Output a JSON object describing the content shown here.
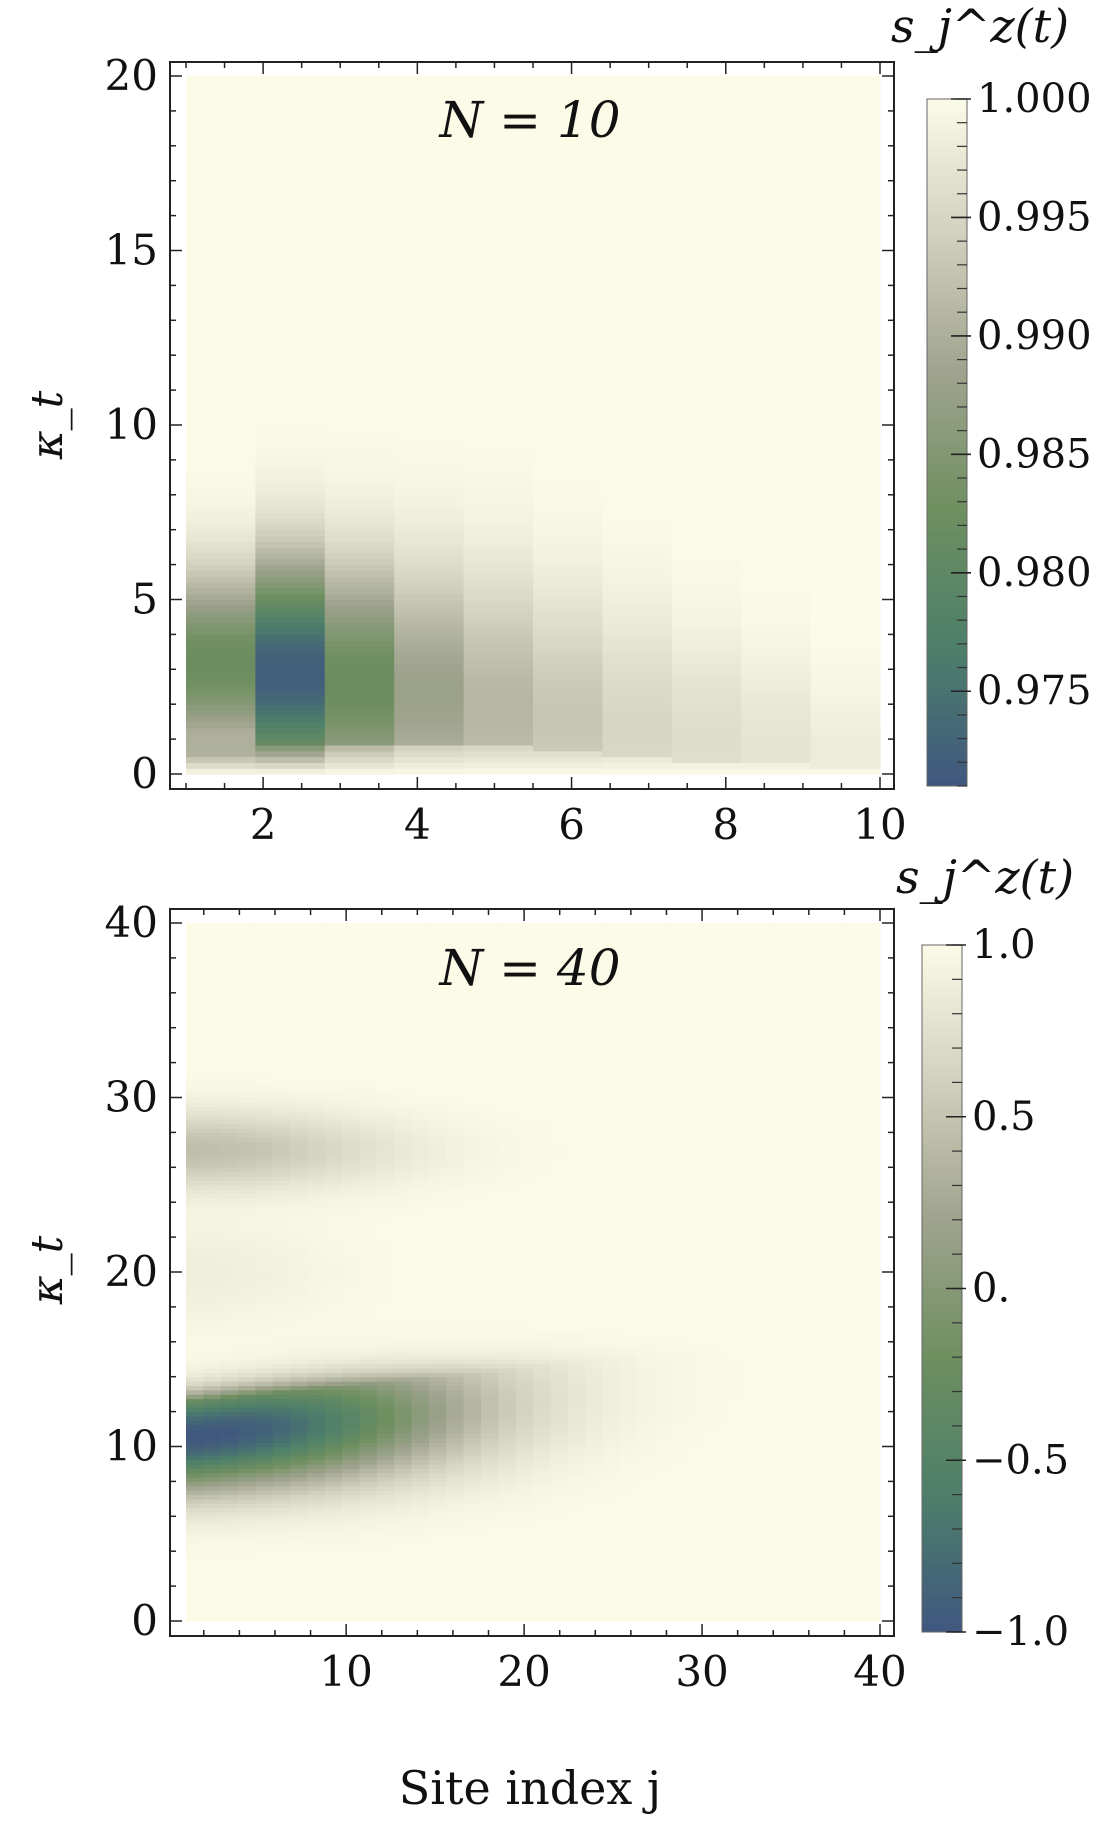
{
  "figure": {
    "xlabel": "Site index j"
  },
  "chart_data": [
    {
      "type": "heatmap",
      "title": "N = 10",
      "xlabel": "",
      "ylabel": "κ_t",
      "xlim": [
        1,
        10
      ],
      "ylim": [
        0,
        20
      ],
      "x_ticks": [
        "2",
        "4",
        "6",
        "8",
        "10"
      ],
      "x_tick_values": [
        2,
        4,
        6,
        8,
        10
      ],
      "y_ticks": [
        "0",
        "5",
        "10",
        "15",
        "20"
      ],
      "y_tick_values": [
        0,
        5,
        10,
        15,
        20
      ],
      "colorbar": {
        "title": "s_j^z(t)",
        "range": [
          0.971,
          1.0
        ],
        "ticks": [
          "1.000",
          "0.995",
          "0.990",
          "0.985",
          "0.980",
          "0.975"
        ],
        "tick_values": [
          1.0,
          0.995,
          0.99,
          0.985,
          0.98,
          0.975
        ]
      },
      "sites": [
        1,
        2,
        3,
        4,
        5,
        6,
        7,
        8,
        9,
        10
      ],
      "site_profiles": [
        {
          "site": 1,
          "min_value": 0.982,
          "t_min": 3.2,
          "t_onset": 0.6,
          "width": 2.6
        },
        {
          "site": 2,
          "min_value": 0.972,
          "t_min": 2.9,
          "t_onset": 0.8,
          "width": 3.2
        },
        {
          "site": 3,
          "min_value": 0.982,
          "t_min": 2.6,
          "t_onset": 0.9,
          "width": 3.4
        },
        {
          "site": 4,
          "min_value": 0.988,
          "t_min": 2.3,
          "t_onset": 0.9,
          "width": 3.6
        },
        {
          "site": 5,
          "min_value": 0.991,
          "t_min": 1.9,
          "t_onset": 0.8,
          "width": 3.8
        },
        {
          "site": 6,
          "min_value": 0.993,
          "t_min": 1.6,
          "t_onset": 0.6,
          "width": 3.6
        },
        {
          "site": 7,
          "min_value": 0.995,
          "t_min": 1.3,
          "t_onset": 0.5,
          "width": 3.4
        },
        {
          "site": 8,
          "min_value": 0.996,
          "t_min": 1.0,
          "t_onset": 0.4,
          "width": 3.0
        },
        {
          "site": 9,
          "min_value": 0.997,
          "t_min": 0.8,
          "t_onset": 0.3,
          "width": 2.6
        },
        {
          "site": 10,
          "min_value": 0.998,
          "t_min": 0.5,
          "t_onset": 0.2,
          "width": 2.0
        }
      ]
    },
    {
      "type": "heatmap",
      "title": "N = 40",
      "xlabel": "Site index j",
      "ylabel": "κ_t",
      "xlim": [
        1,
        40
      ],
      "ylim": [
        0,
        40
      ],
      "x_ticks": [
        "10",
        "20",
        "30",
        "40"
      ],
      "x_tick_values": [
        10,
        20,
        30,
        40
      ],
      "y_ticks": [
        "0",
        "10",
        "20",
        "30",
        "40"
      ],
      "y_tick_values": [
        0,
        10,
        20,
        30,
        40
      ],
      "colorbar": {
        "title": "s_j^z(t)",
        "range": [
          -1.0,
          1.0
        ],
        "ticks": [
          "1.0",
          "0.5",
          "0.",
          "−0.5",
          "−1.0"
        ],
        "tick_values": [
          1.0,
          0.5,
          0.0,
          -0.5,
          -1.0
        ]
      },
      "sites": [
        1,
        40
      ],
      "features": [
        {
          "name": "main dip",
          "min_value": -1.0,
          "t_range": [
            6,
            16
          ],
          "front_site_at_t12": 15,
          "site_extent": 30
        },
        {
          "name": "revival band",
          "min_value": 0.45,
          "t_range": [
            24,
            30
          ],
          "site_extent": 20
        }
      ]
    }
  ]
}
